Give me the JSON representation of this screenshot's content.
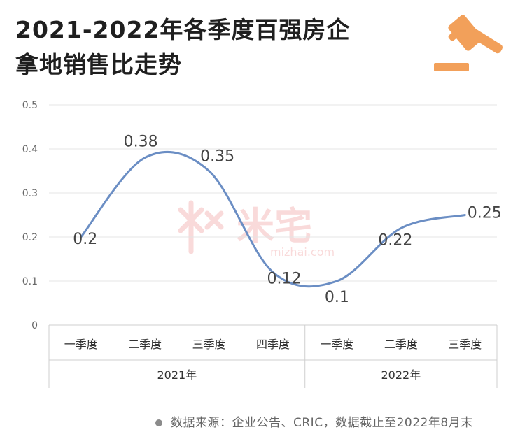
{
  "header": {
    "title_line1": "2021-2022年各季度百强房企",
    "title_line2": "拿地销售比走势",
    "icon": "gavel-icon"
  },
  "chart_data": {
    "type": "line",
    "title": "2021-2022年各季度百强房企拿地销售比走势",
    "categories": [
      "一季度",
      "二季度",
      "三季度",
      "四季度",
      "一季度",
      "二季度",
      "三季度"
    ],
    "groups": [
      {
        "label": "2021年",
        "span": 4
      },
      {
        "label": "2022年",
        "span": 3
      }
    ],
    "series": [
      {
        "values": [
          0.2,
          0.38,
          0.35,
          0.12,
          0.1,
          0.22,
          0.25
        ]
      }
    ],
    "data_labels": [
      "0.2",
      "0.38",
      "0.35",
      "0.12",
      "0.1",
      "0.22",
      "0.25"
    ],
    "yticks": [
      "0",
      "0.1",
      "0.2",
      "0.3",
      "0.4",
      "0.5"
    ],
    "ylim": [
      0,
      0.5
    ],
    "grid": true,
    "line_color": "#6b8ec4",
    "grid_color": "#e4e4e4",
    "axis_color": "#cfcfcf"
  },
  "watermark": {
    "text": "米宅",
    "url": "mizhai.com",
    "color": "#e33a3a"
  },
  "footer": {
    "source": "数据来源：企业公告、CRIC，数据截止至2022年8月末"
  },
  "accent": "#f2a05a"
}
